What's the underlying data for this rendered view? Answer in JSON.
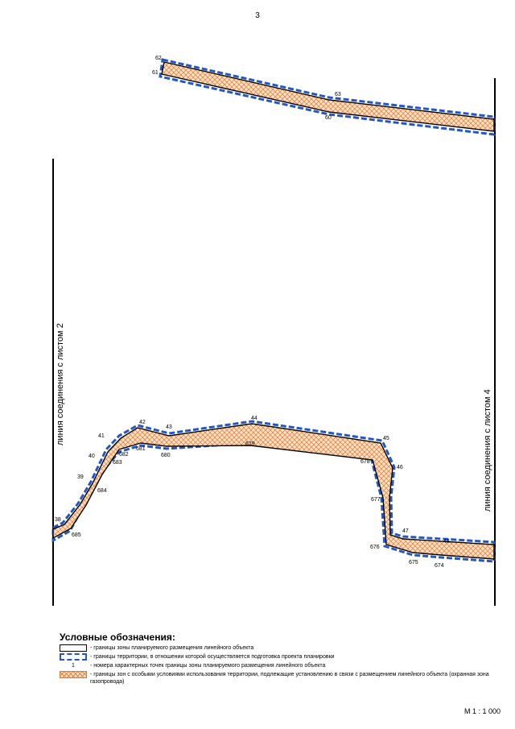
{
  "page_number": "3",
  "left_connection_label": "линия соединения с листом 2",
  "right_connection_label": "линия соединения с листом 4",
  "top_segment": {
    "points": [
      {
        "id": "62",
        "label": "62"
      },
      {
        "id": "61",
        "label": "61"
      },
      {
        "id": "63",
        "label": "63"
      },
      {
        "id": "60",
        "label": "60"
      }
    ]
  },
  "bottom_segment": {
    "outer_points": [
      "38",
      "39",
      "40",
      "41",
      "42",
      "43",
      "44",
      "45",
      "46",
      "47",
      "48"
    ],
    "inner_points": [
      "685",
      "684",
      "683",
      "682",
      "681",
      "680",
      "679",
      "678",
      "677",
      "676",
      "675",
      "674"
    ]
  },
  "legend": {
    "title": "Условные обозначения:",
    "items": [
      {
        "symbol": "zone-border",
        "text": "- границы зоны планируемого размещения линейного объекта"
      },
      {
        "symbol": "territory-border",
        "text": "- границы территории, в отношении которой осуществляется подготовка проекта планировки"
      },
      {
        "symbol": "point-number",
        "symbol_text": "1",
        "text": "- номера характерных точек границы зоны планируемого размещения линейного объекта"
      },
      {
        "symbol": "special-zone",
        "text": "- границы зон с особыми условиями использования территории, подлежащие установлению в связи с размещением линейного объекта (охранная зона газопровода)"
      }
    ]
  },
  "scale": "М 1 : 1 000",
  "colors": {
    "territory": "#2457c5",
    "hatch": "#e8863a",
    "hatch_bg": "#fbe3cf",
    "zone": "#000000"
  }
}
